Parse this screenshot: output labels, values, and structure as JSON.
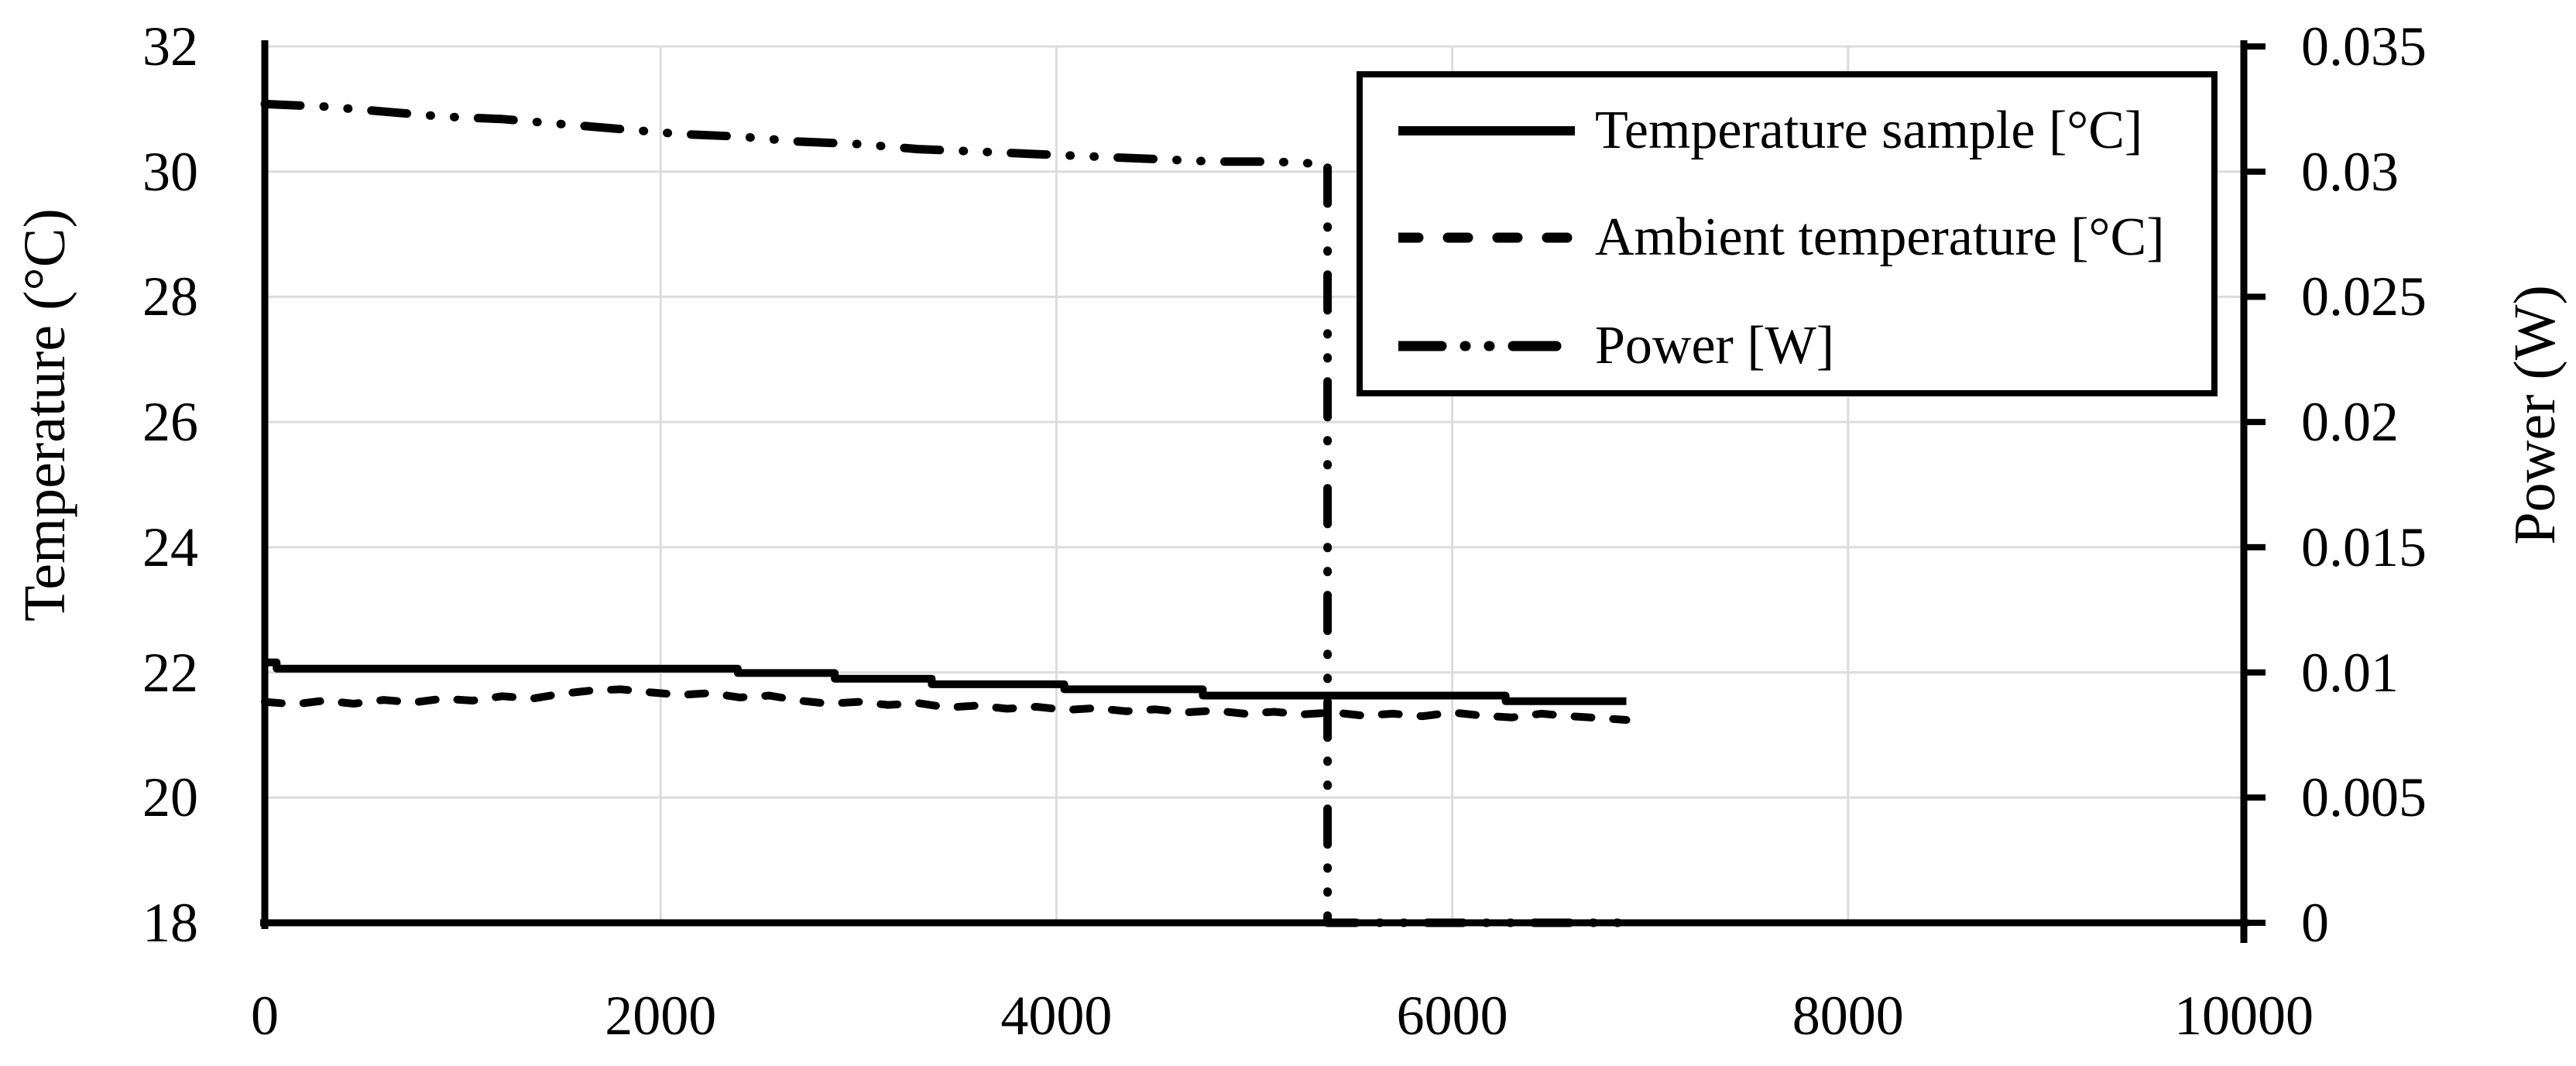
{
  "chart_data": {
    "type": "line",
    "title": "",
    "background": "#ffffff",
    "grid": {
      "color": "#dcdcdc",
      "x_lines": [
        2000,
        4000,
        6000,
        8000
      ],
      "y_lines": [
        20,
        22,
        24,
        26,
        28,
        30,
        32
      ]
    },
    "axes": {
      "x": {
        "label": "",
        "min": 0,
        "max": 10000,
        "ticks": [
          {
            "v": 0,
            "label": "0"
          },
          {
            "v": 2000,
            "label": "2000"
          },
          {
            "v": 4000,
            "label": "4000"
          },
          {
            "v": 6000,
            "label": "6000"
          },
          {
            "v": 8000,
            "label": "8000"
          },
          {
            "v": 10000,
            "label": "10000"
          }
        ]
      },
      "y_left": {
        "label": "Temperature (°C)",
        "min": 18,
        "max": 32,
        "ticks": [
          {
            "v": 18,
            "label": "18"
          },
          {
            "v": 20,
            "label": "20"
          },
          {
            "v": 22,
            "label": "22"
          },
          {
            "v": 24,
            "label": "24"
          },
          {
            "v": 26,
            "label": "26"
          },
          {
            "v": 28,
            "label": "28"
          },
          {
            "v": 30,
            "label": "30"
          },
          {
            "v": 32,
            "label": "32"
          }
        ]
      },
      "y_right": {
        "label": "Power (W)",
        "min": 0,
        "max": 0.035,
        "ticks": [
          {
            "v": 0,
            "label": "0"
          },
          {
            "v": 0.005,
            "label": "0.005"
          },
          {
            "v": 0.01,
            "label": "0.01"
          },
          {
            "v": 0.015,
            "label": "0.015"
          },
          {
            "v": 0.02,
            "label": "0.02"
          },
          {
            "v": 0.025,
            "label": "0.025"
          },
          {
            "v": 0.03,
            "label": "0.03"
          },
          {
            "v": 0.035,
            "label": "0.035"
          }
        ]
      }
    },
    "legend": {
      "position": "top-right"
    },
    "series": [
      {
        "name": "Temperature sample [°C]",
        "axis": "left",
        "style": "solid",
        "points": [
          [
            0,
            22.16
          ],
          [
            60,
            22.16
          ],
          [
            60,
            22.06
          ],
          [
            2390,
            22.06
          ],
          [
            2390,
            21.99
          ],
          [
            2880,
            21.99
          ],
          [
            2880,
            21.9
          ],
          [
            3370,
            21.9
          ],
          [
            3370,
            21.81
          ],
          [
            4040,
            21.81
          ],
          [
            4040,
            21.73
          ],
          [
            4740,
            21.73
          ],
          [
            4740,
            21.63
          ],
          [
            6270,
            21.63
          ],
          [
            6270,
            21.54
          ],
          [
            6880,
            21.54
          ]
        ]
      },
      {
        "name": "Ambient temperature [°C]",
        "axis": "left",
        "style": "dashed",
        "points": [
          [
            0,
            21.53
          ],
          [
            150,
            21.49
          ],
          [
            300,
            21.55
          ],
          [
            450,
            21.5
          ],
          [
            600,
            21.56
          ],
          [
            750,
            21.52
          ],
          [
            900,
            21.58
          ],
          [
            1050,
            21.55
          ],
          [
            1200,
            21.62
          ],
          [
            1350,
            21.58
          ],
          [
            1500,
            21.66
          ],
          [
            1650,
            21.71
          ],
          [
            1800,
            21.73
          ],
          [
            1950,
            21.68
          ],
          [
            2100,
            21.64
          ],
          [
            2250,
            21.67
          ],
          [
            2400,
            21.6
          ],
          [
            2550,
            21.63
          ],
          [
            2700,
            21.55
          ],
          [
            2850,
            21.5
          ],
          [
            3000,
            21.53
          ],
          [
            3150,
            21.48
          ],
          [
            3300,
            21.51
          ],
          [
            3450,
            21.44
          ],
          [
            3600,
            21.47
          ],
          [
            3750,
            21.42
          ],
          [
            3900,
            21.45
          ],
          [
            4050,
            21.4
          ],
          [
            4200,
            21.43
          ],
          [
            4350,
            21.38
          ],
          [
            4500,
            21.41
          ],
          [
            4650,
            21.36
          ],
          [
            4800,
            21.39
          ],
          [
            4950,
            21.34
          ],
          [
            5100,
            21.37
          ],
          [
            5250,
            21.33
          ],
          [
            5400,
            21.36
          ],
          [
            5550,
            21.31
          ],
          [
            5700,
            21.34
          ],
          [
            5850,
            21.3
          ],
          [
            6000,
            21.36
          ],
          [
            6150,
            21.31
          ],
          [
            6300,
            21.28
          ],
          [
            6450,
            21.34
          ],
          [
            6600,
            21.3
          ],
          [
            6750,
            21.27
          ],
          [
            6880,
            21.24
          ]
        ]
      },
      {
        "name": "Power [W]",
        "axis": "right",
        "style": "dashdotdot",
        "points": [
          [
            0,
            0.0327
          ],
          [
            300,
            0.0326
          ],
          [
            600,
            0.0324
          ],
          [
            900,
            0.0322
          ],
          [
            1200,
            0.0321
          ],
          [
            1500,
            0.0319
          ],
          [
            1800,
            0.0317
          ],
          [
            2100,
            0.0315
          ],
          [
            2400,
            0.0314
          ],
          [
            2700,
            0.0312
          ],
          [
            3000,
            0.0311
          ],
          [
            3300,
            0.0309
          ],
          [
            3600,
            0.0308
          ],
          [
            3900,
            0.0307
          ],
          [
            4200,
            0.0306
          ],
          [
            4500,
            0.0305
          ],
          [
            4800,
            0.0304
          ],
          [
            5100,
            0.0304
          ],
          [
            5370,
            0.0303
          ],
          [
            5370,
            0.0
          ],
          [
            6880,
            0.0
          ]
        ]
      }
    ]
  }
}
